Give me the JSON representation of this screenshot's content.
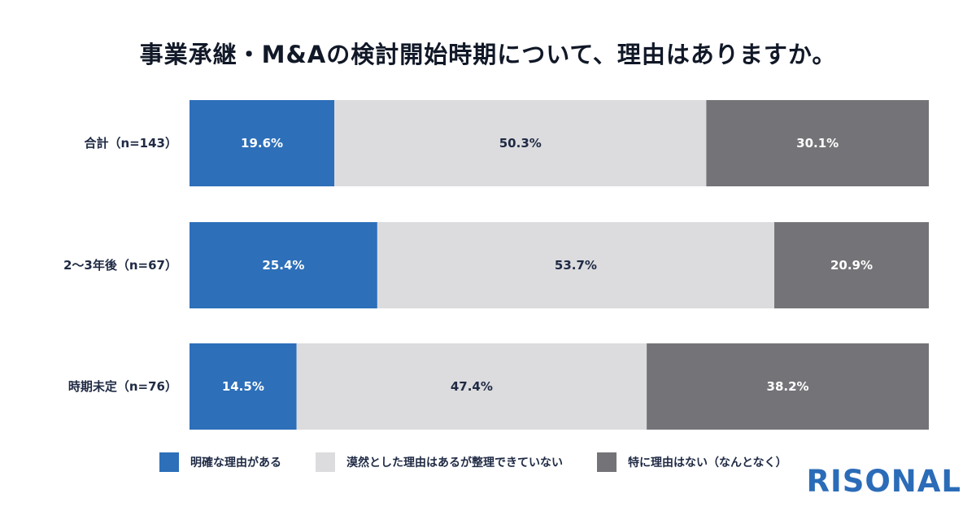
{
  "title": "事業承継・M&Aの検討開始時期について、理由はありますか。",
  "brand": "RISONAL",
  "colors": {
    "series": [
      "#2d6fb9",
      "#dcdcde",
      "#747478"
    ],
    "label_text": [
      "#ffffff",
      "#1f2a44",
      "#ffffff"
    ],
    "brand": "#2b6cb8"
  },
  "chart_data": {
    "type": "bar",
    "orientation": "horizontal",
    "stacked": true,
    "normalized_percent": true,
    "categories": [
      "合計（n=143）",
      "2～3年後（n=67）",
      "時期未定（n=76）"
    ],
    "series": [
      {
        "name": "明確な理由がある",
        "values": [
          19.6,
          25.4,
          14.5
        ],
        "labels": [
          "19.6%",
          "25.4%",
          "14.5%"
        ]
      },
      {
        "name": "漠然とした理由はあるが整理できていない",
        "values": [
          50.3,
          53.7,
          47.4
        ],
        "labels": [
          "50.3%",
          "53.7%",
          "47.4%"
        ]
      },
      {
        "name": "特に理由はない（なんとなく）",
        "values": [
          30.1,
          20.9,
          38.2
        ],
        "labels": [
          "30.1%",
          "20.9%",
          "38.2%"
        ]
      }
    ],
    "xlim": [
      0,
      100
    ],
    "grid": false,
    "legend_position": "bottom"
  }
}
